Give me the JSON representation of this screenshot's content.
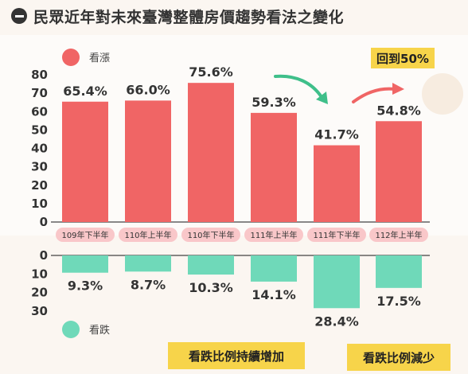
{
  "title": "民眾近年對未來臺灣整體房價趨勢看法之變化",
  "colors": {
    "up": "#f06565",
    "down": "#6fd9b9",
    "callout": "#f7d44a",
    "label_bg": "#f9c7c9"
  },
  "chart_data": [
    {
      "type": "bar",
      "legend": "看漲",
      "categories": [
        "109年下半年",
        "110年上半年",
        "110年下半年",
        "111年上半年",
        "111年下半年",
        "112年上半年"
      ],
      "values": [
        65.4,
        66.0,
        75.6,
        59.3,
        41.7,
        54.8
      ],
      "value_labels": [
        "65.4%",
        "66.0%",
        "75.6%",
        "59.3%",
        "41.7%",
        "54.8%"
      ],
      "ylim": [
        0,
        80
      ],
      "yticks": [
        "0",
        "10",
        "20",
        "30",
        "40",
        "50",
        "60",
        "70",
        "80"
      ],
      "annotation": "回到50%"
    },
    {
      "type": "bar",
      "legend": "看跌",
      "categories": [
        "109年下半年",
        "110年上半年",
        "110年下半年",
        "111年上半年",
        "111年下半年",
        "112年上半年"
      ],
      "values": [
        9.3,
        8.7,
        10.3,
        14.1,
        28.4,
        17.5
      ],
      "value_labels": [
        "9.3%",
        "8.7%",
        "10.3%",
        "14.1%",
        "28.4%",
        "17.5%"
      ],
      "ylim": [
        0,
        30
      ],
      "yticks": [
        "0",
        "10",
        "20",
        "30"
      ],
      "annotations": [
        "看跌比例持續增加",
        "看跌比例減少"
      ]
    }
  ]
}
